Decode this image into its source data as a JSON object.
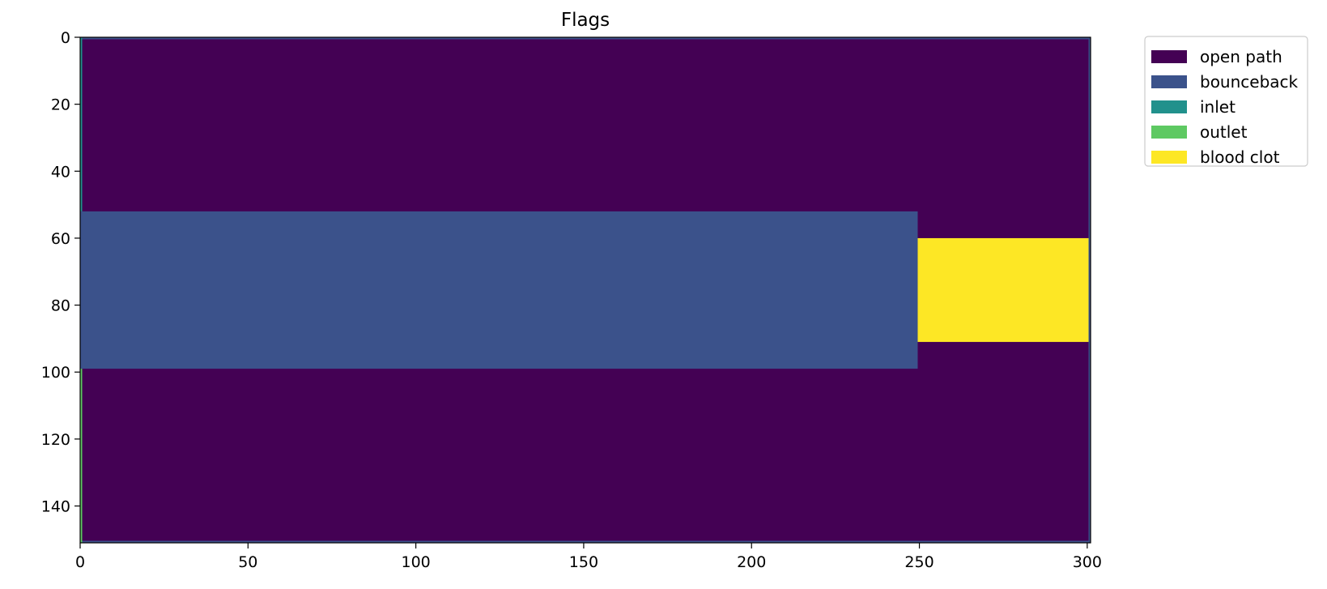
{
  "chart_data": {
    "type": "heatmap",
    "title": "Flags",
    "xlabel": "",
    "ylabel": "",
    "xlim": [
      0,
      301
    ],
    "ylim": [
      151,
      0
    ],
    "grid": false,
    "x_ticks": [
      0,
      50,
      100,
      150,
      200,
      250,
      300
    ],
    "y_ticks": [
      0,
      20,
      40,
      60,
      80,
      100,
      120,
      140
    ],
    "legend": {
      "position": "outside-top-right",
      "entries": [
        {
          "label": "open path",
          "color": "#440154"
        },
        {
          "label": "bounceback",
          "color": "#3b528b"
        },
        {
          "label": "inlet",
          "color": "#21918c"
        },
        {
          "label": "outlet",
          "color": "#5ec962"
        },
        {
          "label": "blood clot",
          "color": "#fde725"
        }
      ]
    },
    "regions": [
      {
        "label": "open path",
        "x": [
          0,
          301
        ],
        "y": [
          0,
          151
        ],
        "color": "#440154"
      },
      {
        "label": "bounceback",
        "x": [
          0,
          301
        ],
        "y": [
          0,
          0.6
        ],
        "color": "#3b528b"
      },
      {
        "label": "bounceback",
        "x": [
          0,
          301
        ],
        "y": [
          150.4,
          151
        ],
        "color": "#3b528b"
      },
      {
        "label": "bounceback",
        "x": [
          300.4,
          301
        ],
        "y": [
          0,
          151
        ],
        "color": "#3b528b"
      },
      {
        "label": "bounceback",
        "x": [
          0,
          249.5
        ],
        "y": [
          52,
          99
        ],
        "color": "#3b528b"
      },
      {
        "label": "inlet",
        "x": [
          0,
          0.6
        ],
        "y": [
          0,
          52
        ],
        "color": "#21918c"
      },
      {
        "label": "outlet",
        "x": [
          0,
          0.6
        ],
        "y": [
          99,
          151
        ],
        "color": "#5ec962"
      },
      {
        "label": "blood clot",
        "x": [
          249.5,
          300.4
        ],
        "y": [
          60,
          91
        ],
        "color": "#fde725"
      }
    ]
  }
}
